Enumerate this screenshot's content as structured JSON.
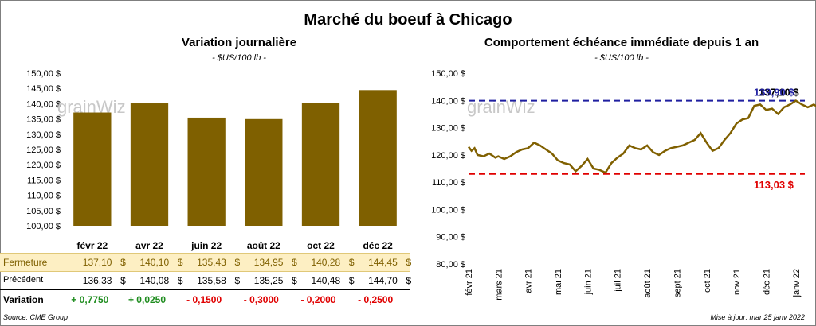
{
  "title": "Marché du boeuf à Chicago",
  "footer": {
    "source": "Source: CME Group",
    "updated": "Mise à jour: mar 25 janv 2022"
  },
  "colors": {
    "bar": "#7f6000",
    "line": "#806000",
    "high_line": "#1f1fa0",
    "low_line": "#e00000",
    "close_row": "#fdefc3"
  },
  "chart_data": [
    {
      "type": "bar",
      "title": "Variation journalière",
      "subtitle": "- $US/100 lb -",
      "watermark": "grainWiz",
      "categories": [
        "févr 22",
        "avr 22",
        "juin 22",
        "août 22",
        "oct 22",
        "déc 22"
      ],
      "values": [
        137.1,
        140.1,
        135.43,
        134.95,
        140.28,
        144.45
      ],
      "ylim": [
        100,
        150
      ],
      "yticks": [
        "100,00 $",
        "105,00 $",
        "110,00 $",
        "115,00 $",
        "120,00 $",
        "125,00 $",
        "130,00 $",
        "135,00 $",
        "140,00 $",
        "145,00 $",
        "150,00 $"
      ],
      "grid": false,
      "table": {
        "rows": [
          {
            "label": "Fermeture",
            "values": [
              "137,10",
              "140,10",
              "135,43",
              "134,95",
              "140,28",
              "144,45"
            ],
            "unit": "$"
          },
          {
            "label": "Précédent",
            "values": [
              "136,33",
              "140,08",
              "135,58",
              "135,25",
              "140,48",
              "144,70"
            ],
            "unit": "$"
          },
          {
            "label": "Variation",
            "values": [
              "+ 0,7750",
              "+ 0,0250",
              "- 0,1500",
              "- 0,3000",
              "- 0,2000",
              "- 0,2500"
            ],
            "unit": ""
          }
        ]
      }
    },
    {
      "type": "line",
      "title": "Comportement échéance immédiate depuis 1 an",
      "subtitle": "- $US/100 lb -",
      "watermark": "grainWiz",
      "x_ticks": [
        "févr 21",
        "mars 21",
        "avr 21",
        "mai 21",
        "juin 21",
        "juil 21",
        "août 21",
        "sept 21",
        "oct 21",
        "nov 21",
        "déc 21",
        "janv 22"
      ],
      "ylim": [
        80,
        150
      ],
      "yticks": [
        "80,00 $",
        "90,00 $",
        "100,00 $",
        "110,00 $",
        "120,00 $",
        "130,00 $",
        "140,00 $",
        "150,00 $"
      ],
      "grid": false,
      "high": {
        "value": 139.9,
        "label": "139,90 $"
      },
      "high_overlap_label": "137,10 $",
      "low": {
        "value": 113.03,
        "label": "113,03 $"
      },
      "x": [
        0,
        0.1,
        0.2,
        0.3,
        0.5,
        0.7,
        0.9,
        1.0,
        1.2,
        1.4,
        1.6,
        1.8,
        2.0,
        2.2,
        2.4,
        2.6,
        2.8,
        3.0,
        3.2,
        3.4,
        3.6,
        3.8,
        4.0,
        4.2,
        4.4,
        4.6,
        4.8,
        5.0,
        5.2,
        5.4,
        5.6,
        5.8,
        6.0,
        6.2,
        6.4,
        6.6,
        6.8,
        7.0,
        7.2,
        7.4,
        7.6,
        7.8,
        8.0,
        8.2,
        8.4,
        8.6,
        8.8,
        9.0,
        9.2,
        9.4,
        9.6,
        9.8,
        10.0,
        10.2,
        10.4,
        10.6,
        10.8,
        11.0,
        11.2,
        11.4,
        11.6,
        11.8
      ],
      "values": [
        123.0,
        121.5,
        122.5,
        120.0,
        119.5,
        120.5,
        119.0,
        119.5,
        118.5,
        119.5,
        121.0,
        122.0,
        122.5,
        124.5,
        123.5,
        122.0,
        120.5,
        118.0,
        117.0,
        116.5,
        114.0,
        116.0,
        118.5,
        115.0,
        114.5,
        113.5,
        117.0,
        119.0,
        120.5,
        123.5,
        122.5,
        122.0,
        123.5,
        121.0,
        120.0,
        121.5,
        122.5,
        123.0,
        123.5,
        124.5,
        125.5,
        128.0,
        124.5,
        121.5,
        122.5,
        125.5,
        128.0,
        131.5,
        133.0,
        133.5,
        138.0,
        138.5,
        136.5,
        137.0,
        135.0,
        137.5,
        138.5,
        139.9,
        138.5,
        137.5,
        138.5,
        137.1
      ]
    }
  ]
}
